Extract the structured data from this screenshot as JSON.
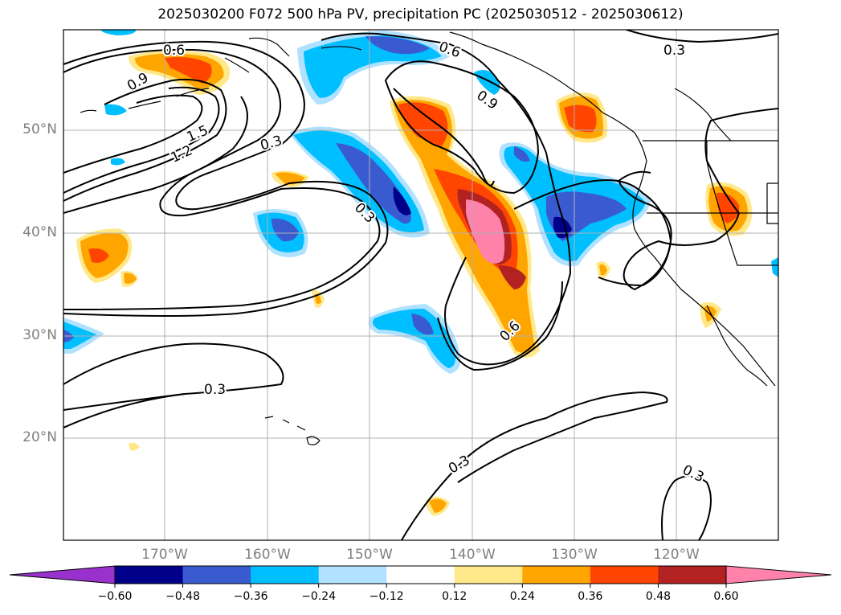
{
  "title": "2025030200 F072 500 hPa PV, precipitation PC (2025030512 - 2025030612)",
  "lat_ticks": [
    "50°N",
    "40°N",
    "30°N",
    "20°N"
  ],
  "lon_ticks": [
    "170°W",
    "160°W",
    "150°W",
    "140°W",
    "130°W",
    "120°W"
  ],
  "contour_labels": [
    "0.6",
    "0.9",
    "1.5",
    "1.2",
    "0.3",
    "0.3",
    "0.6",
    "0.9",
    "0.3",
    "0.6",
    "0.3",
    "0.3",
    "0.3"
  ],
  "colorbar": {
    "ticks": [
      "−0.60",
      "−0.48",
      "−0.36",
      "−0.24",
      "−0.12",
      "0.12",
      "0.24",
      "0.36",
      "0.48",
      "0.60"
    ],
    "colors": [
      "#9932cc",
      "#00008b",
      "#3a5bd0",
      "#00bfff",
      "#b0e2ff",
      "#ffffff",
      "#ffe88a",
      "#ffa500",
      "#ff4500",
      "#b22222",
      "#ff82ab"
    ]
  },
  "shading_colors": {
    "neg_light": "#b0e2ff",
    "neg_mid": "#00bfff",
    "neg_strong": "#3a5bd0",
    "neg_max": "#00008b",
    "pos_light": "#ffe88a",
    "pos_mid": "#ffa500",
    "pos_strong": "#ff4500",
    "pos_dark": "#b22222",
    "pos_max": "#ff82ab"
  }
}
